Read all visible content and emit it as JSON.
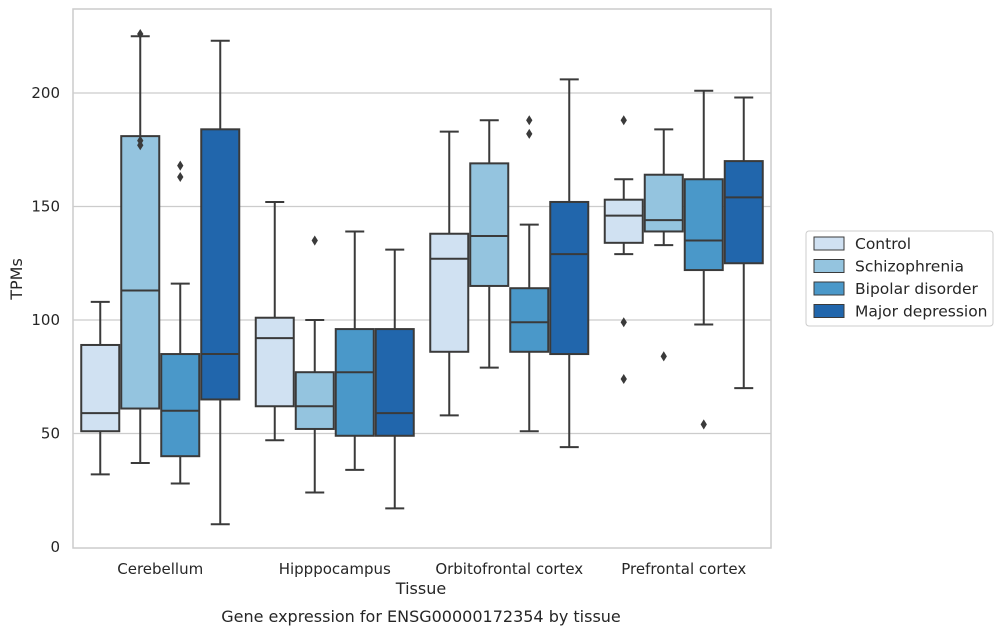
{
  "chart_data": {
    "type": "box",
    "xlabel": "Tissue",
    "ylabel": "TPMs",
    "caption": "Gene expression for ENSG00000172354 by tissue",
    "ylim": [
      0,
      238
    ],
    "yticks": [
      0,
      50,
      100,
      150,
      200
    ],
    "grid": "horizontal",
    "legend_position": "right",
    "categories": [
      "Cerebellum",
      "Hipppocampus",
      "Orbitofrontal cortex",
      "Prefrontal cortex"
    ],
    "series": [
      {
        "name": "Control",
        "color": "#d0e1f2",
        "boxes": [
          {
            "whislo": 32,
            "q1": 51,
            "med": 59,
            "q3": 89,
            "whishi": 108,
            "fliers": []
          },
          {
            "whislo": 47,
            "q1": 62,
            "med": 92,
            "q3": 101,
            "whishi": 152,
            "fliers": []
          },
          {
            "whislo": 58,
            "q1": 86,
            "med": 127,
            "q3": 138,
            "whishi": 183,
            "fliers": []
          },
          {
            "whislo": 129,
            "q1": 134,
            "med": 146,
            "q3": 153,
            "whishi": 162,
            "fliers": [
              188,
              99,
              74
            ]
          }
        ]
      },
      {
        "name": "Schizophrenia",
        "color": "#94c4df",
        "boxes": [
          {
            "whislo": 37,
            "q1": 61,
            "med": 113,
            "q3": 181,
            "whishi": 225,
            "fliers": [
              226,
              179,
              177
            ]
          },
          {
            "whislo": 24,
            "q1": 52,
            "med": 62,
            "q3": 77,
            "whishi": 100,
            "fliers": [
              135
            ]
          },
          {
            "whislo": 79,
            "q1": 115,
            "med": 137,
            "q3": 169,
            "whishi": 188,
            "fliers": []
          },
          {
            "whislo": 133,
            "q1": 139,
            "med": 144,
            "q3": 164,
            "whishi": 184,
            "fliers": [
              84
            ]
          }
        ]
      },
      {
        "name": "Bipolar disorder",
        "color": "#4a98c9",
        "boxes": [
          {
            "whislo": 28,
            "q1": 40,
            "med": 60,
            "q3": 85,
            "whishi": 116,
            "fliers": [
              168,
              163
            ]
          },
          {
            "whislo": 34,
            "q1": 49,
            "med": 77,
            "q3": 96,
            "whishi": 139,
            "fliers": []
          },
          {
            "whislo": 51,
            "q1": 86,
            "med": 99,
            "q3": 114,
            "whishi": 142,
            "fliers": [
              188,
              182
            ]
          },
          {
            "whislo": 98,
            "q1": 122,
            "med": 135,
            "q3": 162,
            "whishi": 201,
            "fliers": [
              54
            ]
          }
        ]
      },
      {
        "name": "Major depression",
        "color": "#2166ac",
        "boxes": [
          {
            "whislo": 10,
            "q1": 65,
            "med": 85,
            "q3": 184,
            "whishi": 223,
            "fliers": []
          },
          {
            "whislo": 17,
            "q1": 49,
            "med": 59,
            "q3": 96,
            "whishi": 131,
            "fliers": []
          },
          {
            "whislo": 44,
            "q1": 85,
            "med": 129,
            "q3": 152,
            "whishi": 206,
            "fliers": []
          },
          {
            "whislo": 70,
            "q1": 125,
            "med": 154,
            "q3": 170,
            "whishi": 198,
            "fliers": []
          }
        ]
      }
    ]
  }
}
